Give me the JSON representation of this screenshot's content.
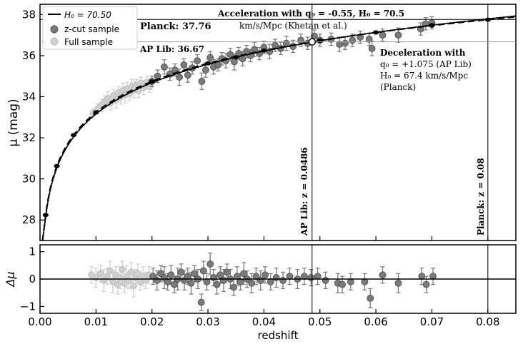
{
  "chart_data": [
    {
      "type": "scatter",
      "panel": "top",
      "xlabel": "",
      "ylabel": "μ (mag)",
      "xlim": [
        0.0,
        0.085
      ],
      "ylim": [
        27.0,
        38.5
      ],
      "yticks": [
        28,
        30,
        32,
        34,
        36,
        38
      ],
      "ytick_labels": [
        "28",
        "30",
        "32",
        "34",
        "36",
        "38"
      ],
      "legend": {
        "placement": "top-left",
        "entries": [
          {
            "label": "H₀ = 70.50",
            "kind": "line",
            "color": "#000000"
          },
          {
            "label": "z-cut sample",
            "kind": "marker",
            "color": "#7a7a7a"
          },
          {
            "label": "Full sample",
            "kind": "marker",
            "color": "#cfcfcf"
          }
        ]
      },
      "model": {
        "H0": 70.5,
        "label": "H₀ = 70.50"
      },
      "acceleration_curve": {
        "q0": -0.55,
        "H0": 70.5,
        "style": "dotted"
      },
      "deceleration_curve": {
        "q0": 1.075,
        "H0": 67.4,
        "style": "dashed"
      },
      "vertical_lines": [
        {
          "x": 0.0486,
          "label": "AP Lib: z = 0.0486"
        },
        {
          "x": 0.08,
          "label": "Planck: z = 0.08"
        }
      ],
      "horizontal_lines": [
        {
          "y": 37.76,
          "label": "Planck: 37.76"
        },
        {
          "y": 36.67,
          "label": "AP Lib: 36.67"
        }
      ],
      "annotations": {
        "acceleration_title": "Acceleration with q₀ = -0.55, H₀ = 70.5",
        "acceleration_sub": "km/s/Mpc (Khetan et al.)",
        "deceleration_title": "Deceleration with",
        "deceleration_l1": "q₀ = +1.075 (AP Lib)",
        "deceleration_l2": "H₀ = 67.4 km/s/Mpc",
        "deceleration_l3": "(Planck)"
      },
      "series": [
        {
          "name": "z-cut sample",
          "color": "#7a7a7a",
          "points": [
            [
              0.02,
              34.75,
              0.25
            ],
            [
              0.021,
              35.0,
              0.3
            ],
            [
              0.0222,
              35.45,
              0.35
            ],
            [
              0.0232,
              35.1,
              0.3
            ],
            [
              0.0241,
              35.3,
              0.3
            ],
            [
              0.0249,
              34.95,
              0.4
            ],
            [
              0.0257,
              35.55,
              0.3
            ],
            [
              0.0264,
              35.05,
              0.35
            ],
            [
              0.0272,
              35.4,
              0.3
            ],
            [
              0.0281,
              35.75,
              0.3
            ],
            [
              0.0289,
              34.75,
              0.4
            ],
            [
              0.0296,
              35.3,
              0.35
            ],
            [
              0.0304,
              35.9,
              0.3
            ],
            [
              0.031,
              35.45,
              0.35
            ],
            [
              0.0318,
              35.55,
              0.3
            ],
            [
              0.0325,
              35.85,
              0.3
            ],
            [
              0.0332,
              35.75,
              0.35
            ],
            [
              0.034,
              36.05,
              0.3
            ],
            [
              0.0347,
              35.7,
              0.4
            ],
            [
              0.0355,
              36.1,
              0.3
            ],
            [
              0.0362,
              35.85,
              0.35
            ],
            [
              0.0369,
              36.2,
              0.3
            ],
            [
              0.0376,
              36.0,
              0.3
            ],
            [
              0.0383,
              36.3,
              0.35
            ],
            [
              0.0392,
              36.1,
              0.3
            ],
            [
              0.04,
              36.4,
              0.3
            ],
            [
              0.041,
              36.2,
              0.35
            ],
            [
              0.042,
              36.5,
              0.3
            ],
            [
              0.043,
              36.35,
              0.3
            ],
            [
              0.044,
              36.6,
              0.35
            ],
            [
              0.0452,
              36.45,
              0.3
            ],
            [
              0.0466,
              36.75,
              0.3
            ],
            [
              0.0478,
              36.6,
              0.3
            ],
            [
              0.049,
              36.95,
              0.3
            ],
            [
              0.05,
              36.75,
              0.3
            ],
            [
              0.052,
              36.8,
              0.3
            ],
            [
              0.0535,
              36.55,
              0.35
            ],
            [
              0.0545,
              36.6,
              0.3
            ],
            [
              0.0558,
              36.75,
              0.3
            ],
            [
              0.0572,
              36.9,
              0.3
            ],
            [
              0.0588,
              36.8,
              0.3
            ],
            [
              0.0593,
              36.35,
              0.35
            ],
            [
              0.0612,
              37.0,
              0.3
            ],
            [
              0.064,
              37.0,
              0.35
            ],
            [
              0.068,
              37.3,
              0.3
            ],
            [
              0.0689,
              37.55,
              0.3
            ],
            [
              0.07,
              37.6,
              0.3
            ]
          ]
        },
        {
          "name": "Full sample",
          "color": "#cfcfcf",
          "points": [
            [
              0.0095,
              33.2,
              0.2
            ],
            [
              0.0103,
              33.4,
              0.25
            ],
            [
              0.011,
              33.6,
              0.3
            ],
            [
              0.0116,
              33.75,
              0.3
            ],
            [
              0.0121,
              33.9,
              0.35
            ],
            [
              0.0126,
              33.7,
              0.35
            ],
            [
              0.0131,
              34.05,
              0.3
            ],
            [
              0.0136,
              33.85,
              0.4
            ],
            [
              0.014,
              34.2,
              0.3
            ],
            [
              0.0144,
              34.0,
              0.35
            ],
            [
              0.0148,
              34.3,
              0.35
            ],
            [
              0.0152,
              34.1,
              0.4
            ],
            [
              0.0156,
              34.4,
              0.3
            ],
            [
              0.016,
              34.15,
              0.35
            ],
            [
              0.0164,
              34.5,
              0.35
            ],
            [
              0.0168,
              34.35,
              0.4
            ],
            [
              0.0172,
              34.55,
              0.3
            ],
            [
              0.0176,
              34.3,
              0.35
            ],
            [
              0.018,
              34.65,
              0.3
            ],
            [
              0.0185,
              34.45,
              0.35
            ],
            [
              0.0191,
              34.7,
              0.3
            ],
            [
              0.0196,
              34.5,
              0.3
            ]
          ]
        }
      ]
    },
    {
      "type": "scatter",
      "panel": "bottom",
      "xlabel": "redshift",
      "ylabel": "Δμ",
      "xlim": [
        0.0,
        0.085
      ],
      "ylim": [
        -1.25,
        1.25
      ],
      "xticks": [
        0.0,
        0.01,
        0.02,
        0.03,
        0.04,
        0.05,
        0.06,
        0.07,
        0.08
      ],
      "xtick_labels": [
        "0.00",
        "0.01",
        "0.02",
        "0.03",
        "0.04",
        "0.05",
        "0.06",
        "0.07",
        "0.08"
      ],
      "yticks": [
        -1,
        0,
        1
      ],
      "ytick_labels": [
        "−1",
        "0",
        "1"
      ],
      "zero_line": 0,
      "series": [
        {
          "name": "z-cut sample",
          "color": "#7a7a7a",
          "points": [
            [
              0.0202,
              0.1,
              0.3
            ],
            [
              0.0209,
              -0.05,
              0.35
            ],
            [
              0.0216,
              0.2,
              0.3
            ],
            [
              0.0222,
              0.05,
              0.4
            ],
            [
              0.0228,
              -0.1,
              0.3
            ],
            [
              0.0234,
              0.15,
              0.35
            ],
            [
              0.024,
              -0.2,
              0.3
            ],
            [
              0.0246,
              0.0,
              0.4
            ],
            [
              0.0252,
              0.25,
              0.3
            ],
            [
              0.0258,
              -0.05,
              0.35
            ],
            [
              0.0264,
              0.1,
              0.3
            ],
            [
              0.027,
              -0.15,
              0.4
            ],
            [
              0.0276,
              0.2,
              0.3
            ],
            [
              0.0282,
              0.0,
              0.35
            ],
            [
              0.0288,
              -0.85,
              0.3
            ],
            [
              0.0292,
              0.3,
              0.35
            ],
            [
              0.0298,
              -0.1,
              0.3
            ],
            [
              0.0304,
              0.55,
              0.4
            ],
            [
              0.031,
              0.05,
              0.3
            ],
            [
              0.0316,
              -0.2,
              0.35
            ],
            [
              0.0322,
              0.15,
              0.3
            ],
            [
              0.0328,
              -0.05,
              0.4
            ],
            [
              0.0334,
              0.25,
              0.3
            ],
            [
              0.034,
              0.0,
              0.35
            ],
            [
              0.0346,
              -0.3,
              0.3
            ],
            [
              0.0352,
              0.1,
              0.35
            ],
            [
              0.0358,
              -0.1,
              0.3
            ],
            [
              0.0364,
              0.2,
              0.4
            ],
            [
              0.037,
              0.0,
              0.3
            ],
            [
              0.0378,
              -0.15,
              0.35
            ],
            [
              0.0386,
              0.1,
              0.3
            ],
            [
              0.0394,
              -0.05,
              0.35
            ],
            [
              0.0402,
              0.15,
              0.3
            ],
            [
              0.0412,
              -0.1,
              0.3
            ],
            [
              0.0422,
              0.05,
              0.35
            ],
            [
              0.0434,
              -0.05,
              0.3
            ],
            [
              0.0446,
              0.1,
              0.3
            ],
            [
              0.046,
              0.0,
              0.35
            ],
            [
              0.0472,
              0.1,
              0.3
            ],
            [
              0.0484,
              0.05,
              0.3
            ],
            [
              0.0496,
              0.1,
              0.3
            ],
            [
              0.051,
              -0.05,
              0.3
            ],
            [
              0.0532,
              -0.15,
              0.35
            ],
            [
              0.054,
              -0.2,
              0.3
            ],
            [
              0.0555,
              -0.1,
              0.3
            ],
            [
              0.058,
              -0.1,
              0.3
            ],
            [
              0.059,
              -0.7,
              0.35
            ],
            [
              0.0612,
              0.15,
              0.3
            ],
            [
              0.064,
              -0.15,
              0.35
            ],
            [
              0.0682,
              0.1,
              0.3
            ],
            [
              0.069,
              -0.2,
              0.3
            ],
            [
              0.0702,
              0.1,
              0.3
            ]
          ]
        },
        {
          "name": "Full sample",
          "color": "#cfcfcf",
          "points": [
            [
              0.0092,
              0.15,
              0.3
            ],
            [
              0.01,
              0.05,
              0.35
            ],
            [
              0.0108,
              0.2,
              0.3
            ],
            [
              0.0114,
              -0.05,
              0.4
            ],
            [
              0.012,
              0.1,
              0.3
            ],
            [
              0.0125,
              0.3,
              0.35
            ],
            [
              0.013,
              -0.1,
              0.4
            ],
            [
              0.0135,
              0.15,
              0.3
            ],
            [
              0.0139,
              -0.2,
              0.35
            ],
            [
              0.0143,
              0.05,
              0.4
            ],
            [
              0.0147,
              0.35,
              0.3
            ],
            [
              0.0151,
              -0.15,
              0.35
            ],
            [
              0.0155,
              0.1,
              0.4
            ],
            [
              0.0159,
              -0.05,
              0.3
            ],
            [
              0.0163,
              0.25,
              0.35
            ],
            [
              0.0167,
              -0.25,
              0.4
            ],
            [
              0.0171,
              0.05,
              0.3
            ],
            [
              0.0175,
              0.2,
              0.35
            ],
            [
              0.0179,
              -0.1,
              0.3
            ],
            [
              0.0184,
              0.1,
              0.35
            ],
            [
              0.0189,
              -0.05,
              0.3
            ],
            [
              0.0195,
              0.15,
              0.3
            ]
          ]
        }
      ]
    }
  ]
}
